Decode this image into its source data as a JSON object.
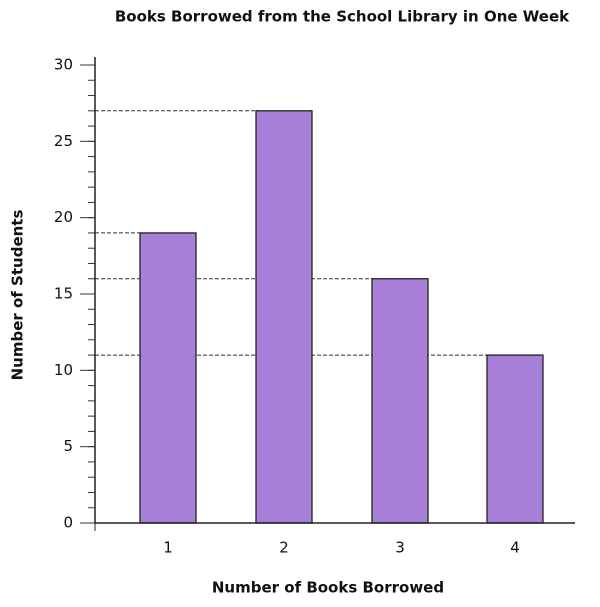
{
  "chart_data": {
    "type": "bar",
    "title": "Books Borrowed from the School Library in One Week",
    "x_label": "Number of Books Borrowed",
    "y_label": "Number of Students",
    "categories": [
      "1",
      "2",
      "3",
      "4"
    ],
    "values": [
      19,
      27,
      16,
      11
    ],
    "color": "#a87fd6",
    "ylim": [
      0,
      30
    ],
    "yticks": [
      0,
      5,
      10,
      15,
      20,
      25,
      30
    ],
    "grid": false,
    "reference_lines": true
  }
}
